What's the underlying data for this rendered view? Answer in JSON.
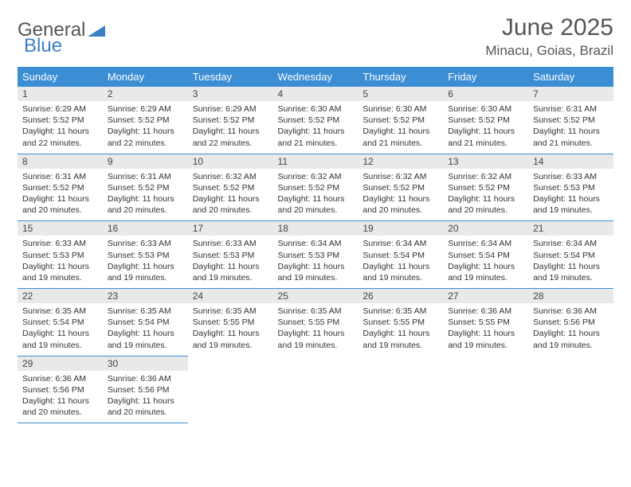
{
  "brand": {
    "part1": "General",
    "part2": "Blue"
  },
  "title": "June 2025",
  "location": "Minacu, Goias, Brazil",
  "colors": {
    "header_bg": "#3b8dd4",
    "header_text": "#ffffff",
    "daynum_bg": "#e9e9e9",
    "border": "#3b8dd4",
    "title_color": "#555555",
    "body_text": "#333333"
  },
  "fonts": {
    "title_size_pt": 22,
    "location_size_pt": 13,
    "weekday_size_pt": 10,
    "daynum_size_pt": 9,
    "body_size_pt": 8
  },
  "weekdays": [
    "Sunday",
    "Monday",
    "Tuesday",
    "Wednesday",
    "Thursday",
    "Friday",
    "Saturday"
  ],
  "weeks": [
    [
      {
        "daynum": "1",
        "sunrise": "Sunrise: 6:29 AM",
        "sunset": "Sunset: 5:52 PM",
        "daylight": "Daylight: 11 hours and 22 minutes."
      },
      {
        "daynum": "2",
        "sunrise": "Sunrise: 6:29 AM",
        "sunset": "Sunset: 5:52 PM",
        "daylight": "Daylight: 11 hours and 22 minutes."
      },
      {
        "daynum": "3",
        "sunrise": "Sunrise: 6:29 AM",
        "sunset": "Sunset: 5:52 PM",
        "daylight": "Daylight: 11 hours and 22 minutes."
      },
      {
        "daynum": "4",
        "sunrise": "Sunrise: 6:30 AM",
        "sunset": "Sunset: 5:52 PM",
        "daylight": "Daylight: 11 hours and 21 minutes."
      },
      {
        "daynum": "5",
        "sunrise": "Sunrise: 6:30 AM",
        "sunset": "Sunset: 5:52 PM",
        "daylight": "Daylight: 11 hours and 21 minutes."
      },
      {
        "daynum": "6",
        "sunrise": "Sunrise: 6:30 AM",
        "sunset": "Sunset: 5:52 PM",
        "daylight": "Daylight: 11 hours and 21 minutes."
      },
      {
        "daynum": "7",
        "sunrise": "Sunrise: 6:31 AM",
        "sunset": "Sunset: 5:52 PM",
        "daylight": "Daylight: 11 hours and 21 minutes."
      }
    ],
    [
      {
        "daynum": "8",
        "sunrise": "Sunrise: 6:31 AM",
        "sunset": "Sunset: 5:52 PM",
        "daylight": "Daylight: 11 hours and 20 minutes."
      },
      {
        "daynum": "9",
        "sunrise": "Sunrise: 6:31 AM",
        "sunset": "Sunset: 5:52 PM",
        "daylight": "Daylight: 11 hours and 20 minutes."
      },
      {
        "daynum": "10",
        "sunrise": "Sunrise: 6:32 AM",
        "sunset": "Sunset: 5:52 PM",
        "daylight": "Daylight: 11 hours and 20 minutes."
      },
      {
        "daynum": "11",
        "sunrise": "Sunrise: 6:32 AM",
        "sunset": "Sunset: 5:52 PM",
        "daylight": "Daylight: 11 hours and 20 minutes."
      },
      {
        "daynum": "12",
        "sunrise": "Sunrise: 6:32 AM",
        "sunset": "Sunset: 5:52 PM",
        "daylight": "Daylight: 11 hours and 20 minutes."
      },
      {
        "daynum": "13",
        "sunrise": "Sunrise: 6:32 AM",
        "sunset": "Sunset: 5:52 PM",
        "daylight": "Daylight: 11 hours and 20 minutes."
      },
      {
        "daynum": "14",
        "sunrise": "Sunrise: 6:33 AM",
        "sunset": "Sunset: 5:53 PM",
        "daylight": "Daylight: 11 hours and 19 minutes."
      }
    ],
    [
      {
        "daynum": "15",
        "sunrise": "Sunrise: 6:33 AM",
        "sunset": "Sunset: 5:53 PM",
        "daylight": "Daylight: 11 hours and 19 minutes."
      },
      {
        "daynum": "16",
        "sunrise": "Sunrise: 6:33 AM",
        "sunset": "Sunset: 5:53 PM",
        "daylight": "Daylight: 11 hours and 19 minutes."
      },
      {
        "daynum": "17",
        "sunrise": "Sunrise: 6:33 AM",
        "sunset": "Sunset: 5:53 PM",
        "daylight": "Daylight: 11 hours and 19 minutes."
      },
      {
        "daynum": "18",
        "sunrise": "Sunrise: 6:34 AM",
        "sunset": "Sunset: 5:53 PM",
        "daylight": "Daylight: 11 hours and 19 minutes."
      },
      {
        "daynum": "19",
        "sunrise": "Sunrise: 6:34 AM",
        "sunset": "Sunset: 5:54 PM",
        "daylight": "Daylight: 11 hours and 19 minutes."
      },
      {
        "daynum": "20",
        "sunrise": "Sunrise: 6:34 AM",
        "sunset": "Sunset: 5:54 PM",
        "daylight": "Daylight: 11 hours and 19 minutes."
      },
      {
        "daynum": "21",
        "sunrise": "Sunrise: 6:34 AM",
        "sunset": "Sunset: 5:54 PM",
        "daylight": "Daylight: 11 hours and 19 minutes."
      }
    ],
    [
      {
        "daynum": "22",
        "sunrise": "Sunrise: 6:35 AM",
        "sunset": "Sunset: 5:54 PM",
        "daylight": "Daylight: 11 hours and 19 minutes."
      },
      {
        "daynum": "23",
        "sunrise": "Sunrise: 6:35 AM",
        "sunset": "Sunset: 5:54 PM",
        "daylight": "Daylight: 11 hours and 19 minutes."
      },
      {
        "daynum": "24",
        "sunrise": "Sunrise: 6:35 AM",
        "sunset": "Sunset: 5:55 PM",
        "daylight": "Daylight: 11 hours and 19 minutes."
      },
      {
        "daynum": "25",
        "sunrise": "Sunrise: 6:35 AM",
        "sunset": "Sunset: 5:55 PM",
        "daylight": "Daylight: 11 hours and 19 minutes."
      },
      {
        "daynum": "26",
        "sunrise": "Sunrise: 6:35 AM",
        "sunset": "Sunset: 5:55 PM",
        "daylight": "Daylight: 11 hours and 19 minutes."
      },
      {
        "daynum": "27",
        "sunrise": "Sunrise: 6:36 AM",
        "sunset": "Sunset: 5:55 PM",
        "daylight": "Daylight: 11 hours and 19 minutes."
      },
      {
        "daynum": "28",
        "sunrise": "Sunrise: 6:36 AM",
        "sunset": "Sunset: 5:56 PM",
        "daylight": "Daylight: 11 hours and 19 minutes."
      }
    ],
    [
      {
        "daynum": "29",
        "sunrise": "Sunrise: 6:36 AM",
        "sunset": "Sunset: 5:56 PM",
        "daylight": "Daylight: 11 hours and 20 minutes."
      },
      {
        "daynum": "30",
        "sunrise": "Sunrise: 6:36 AM",
        "sunset": "Sunset: 5:56 PM",
        "daylight": "Daylight: 11 hours and 20 minutes."
      },
      null,
      null,
      null,
      null,
      null
    ]
  ]
}
